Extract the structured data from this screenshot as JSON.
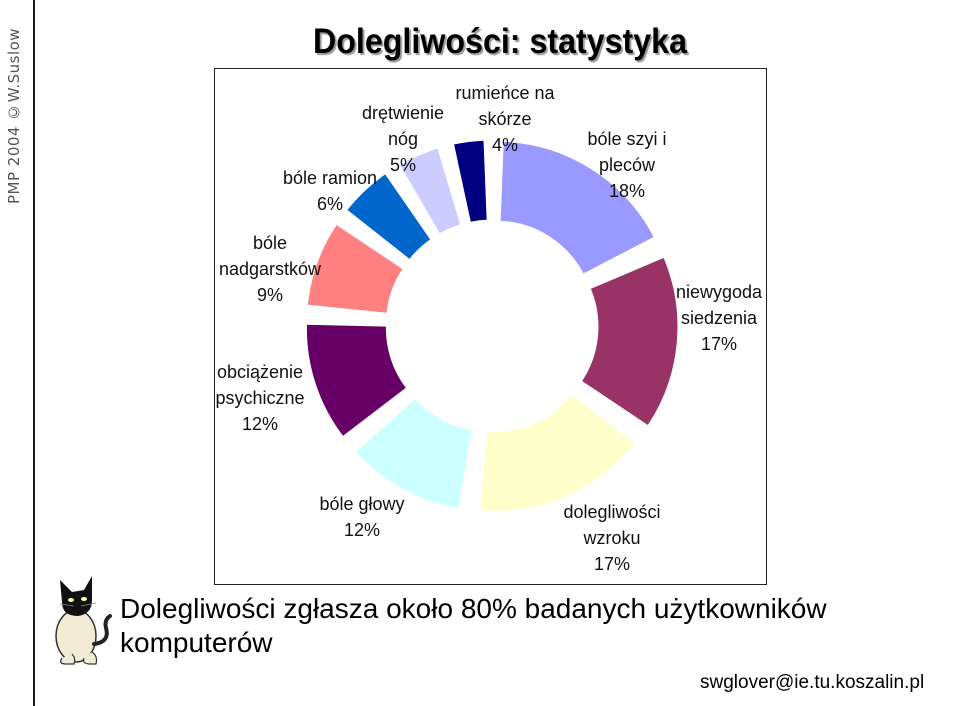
{
  "side_text": "PMP 2004  ©W.Suslow",
  "title": "Dolegliwości: statystyka",
  "caption_line1": "Dolegliwości zgłasza około 80% badanych użytkowników",
  "caption_line2": "komputerów",
  "footer_email": "swglover@ie.tu.koszalin.pl",
  "chart_data": {
    "type": "pie",
    "variant": "exploded-donut",
    "title": "",
    "slices": [
      {
        "label_lines": [
          "bóle szyi i",
          "pleców",
          "18%"
        ],
        "value": 18,
        "color": "#9999ff"
      },
      {
        "label_lines": [
          "niewygoda",
          "siedzenia",
          "17%"
        ],
        "value": 17,
        "color": "#993366"
      },
      {
        "label_lines": [
          "dolegliwości",
          "wzroku",
          "17%"
        ],
        "value": 17,
        "color": "#ffffcc"
      },
      {
        "label_lines": [
          "bóle głowy",
          "12%"
        ],
        "value": 12,
        "color": "#ccffff"
      },
      {
        "label_lines": [
          "obciążenie",
          "psychiczne",
          "12%"
        ],
        "value": 12,
        "color": "#660066"
      },
      {
        "label_lines": [
          "bóle",
          "nadgarstków",
          "9%"
        ],
        "value": 9,
        "color": "#ff8080"
      },
      {
        "label_lines": [
          "bóle ramion",
          "6%"
        ],
        "value": 6,
        "color": "#0066cc"
      },
      {
        "label_lines": [
          "drętwienie",
          "nóg",
          "5%"
        ],
        "value": 5,
        "color": "#ccccff"
      },
      {
        "label_lines": [
          "rumieńce na",
          "skórze",
          "4%"
        ],
        "value": 4,
        "color": "#000080"
      }
    ]
  }
}
